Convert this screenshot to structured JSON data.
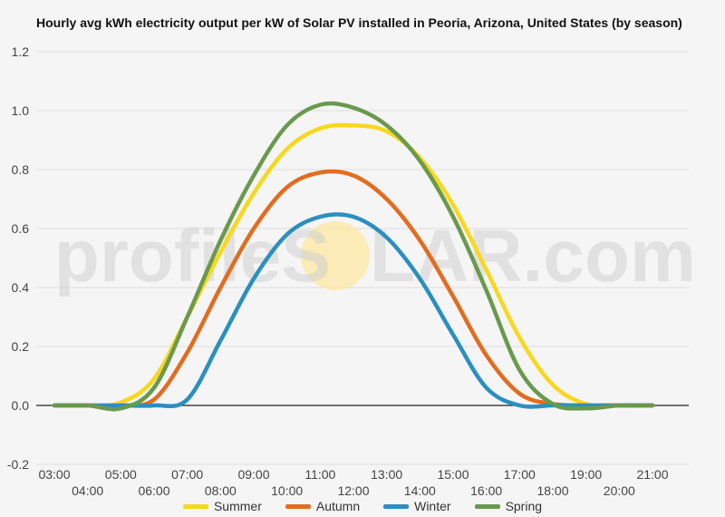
{
  "title": "Hourly avg kWh electricity output per kW of Solar PV installed in Peoria, Arizona, United States (by season)",
  "watermark": {
    "left": "profileS",
    "right": "LAR.com",
    "sun_color": "#fde9a6"
  },
  "colors": {
    "Summer": "#f9d71c",
    "Autumn": "#e36c1f",
    "Winter": "#2b8fbf",
    "Spring": "#6a994e",
    "grid": "#dddddd",
    "zero_line": "#222222"
  },
  "chart_data": {
    "type": "line",
    "title": "Hourly avg kWh electricity output per kW of Solar PV installed in Peoria, Arizona, United States (by season)",
    "xlabel": "",
    "ylabel": "",
    "ylim": [
      -0.2,
      1.2
    ],
    "yticks": [
      "-0.2",
      "0.0",
      "0.2",
      "0.4",
      "0.6",
      "0.8",
      "1.0",
      "1.2"
    ],
    "grid": true,
    "legend_position": "bottom",
    "x": [
      "03:00",
      "04:00",
      "05:00",
      "06:00",
      "07:00",
      "08:00",
      "09:00",
      "10:00",
      "11:00",
      "12:00",
      "13:00",
      "14:00",
      "15:00",
      "16:00",
      "17:00",
      "18:00",
      "19:00",
      "20:00",
      "21:00"
    ],
    "series": [
      {
        "name": "Summer",
        "values": [
          0,
          0,
          0.01,
          0.09,
          0.3,
          0.52,
          0.72,
          0.87,
          0.94,
          0.95,
          0.93,
          0.84,
          0.68,
          0.46,
          0.23,
          0.07,
          0.005,
          0,
          0
        ]
      },
      {
        "name": "Autumn",
        "values": [
          0,
          0,
          0,
          0.02,
          0.18,
          0.4,
          0.6,
          0.74,
          0.79,
          0.78,
          0.7,
          0.56,
          0.37,
          0.17,
          0.04,
          0.005,
          0,
          0,
          0
        ]
      },
      {
        "name": "Winter",
        "values": [
          0,
          0,
          0,
          0,
          0.02,
          0.22,
          0.43,
          0.58,
          0.64,
          0.64,
          0.57,
          0.43,
          0.24,
          0.06,
          0.0,
          0,
          0,
          0,
          0
        ]
      },
      {
        "name": "Spring",
        "values": [
          0,
          0,
          -0.01,
          0.06,
          0.3,
          0.56,
          0.78,
          0.95,
          1.02,
          1.01,
          0.95,
          0.83,
          0.64,
          0.39,
          0.12,
          0.005,
          -0.01,
          0,
          0
        ]
      }
    ]
  }
}
